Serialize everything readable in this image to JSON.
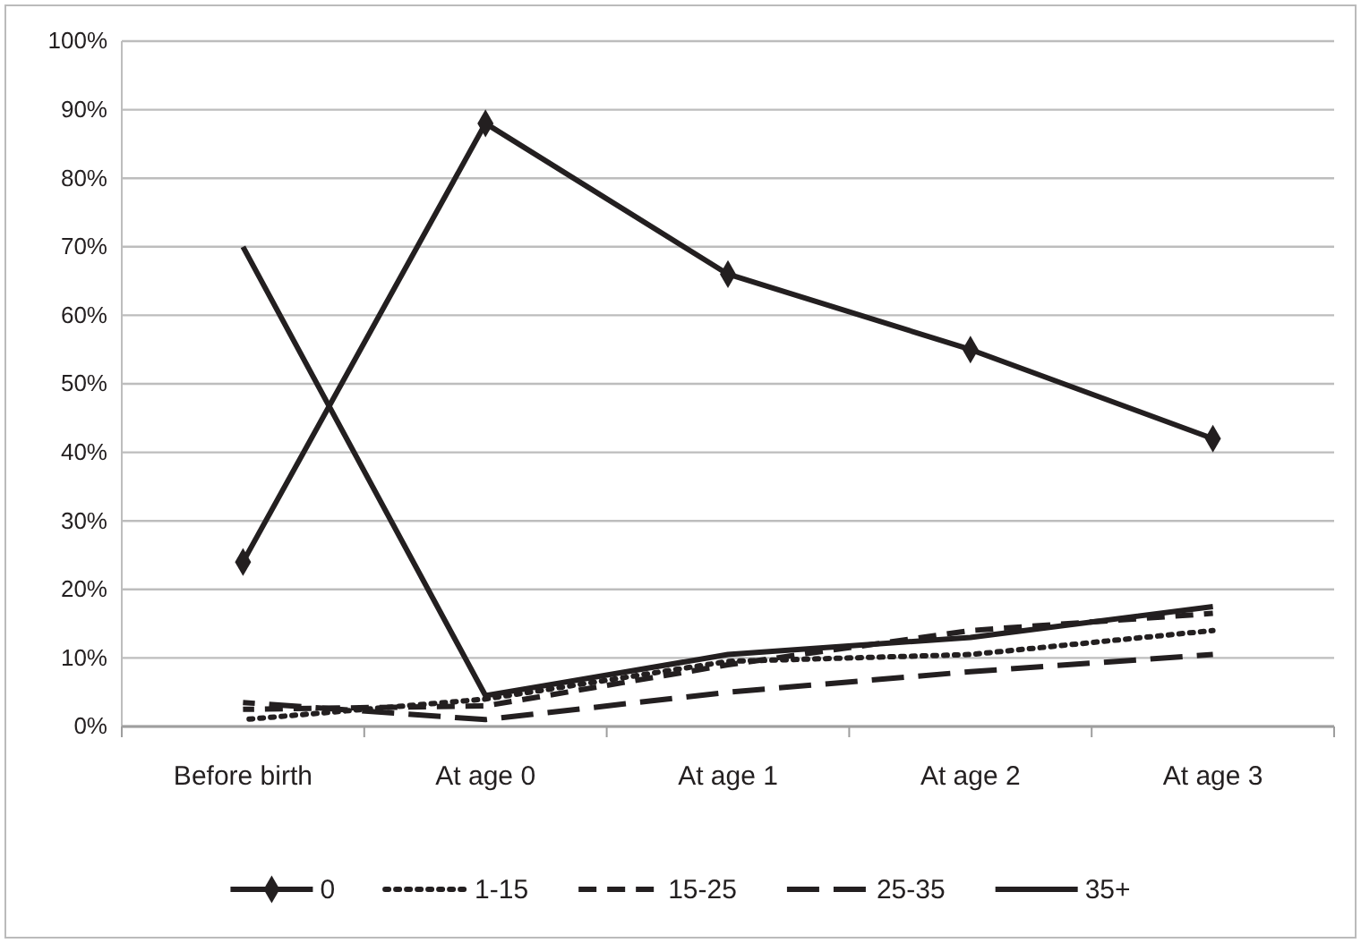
{
  "chart_data": {
    "type": "line",
    "categories": [
      "Before birth",
      "At age 0",
      "At age 1",
      "At age 2",
      "At age 3"
    ],
    "series": [
      {
        "name": "0",
        "color": "#231f20",
        "marker": "diamond",
        "line_style": "solid",
        "values": [
          24,
          88,
          66,
          55,
          42
        ]
      },
      {
        "name": "1-15",
        "color": "#231f20",
        "marker": "none",
        "line_style": "dotted",
        "values": [
          1,
          4,
          9.5,
          10.5,
          14
        ]
      },
      {
        "name": "15-25",
        "color": "#231f20",
        "marker": "none",
        "line_style": "dashed",
        "values": [
          2.5,
          3,
          9,
          14,
          16.5
        ]
      },
      {
        "name": "25-35",
        "color": "#231f20",
        "marker": "none",
        "line_style": "dashed",
        "values": [
          3.5,
          1,
          5,
          8,
          10.5
        ]
      },
      {
        "name": "35+",
        "color": "#231f20",
        "marker": "none",
        "line_style": "solid",
        "values": [
          70,
          4.5,
          10.5,
          13,
          17.5
        ]
      }
    ],
    "ylim": [
      0,
      100
    ],
    "yticks": [
      {
        "value": 0,
        "label": "0%"
      },
      {
        "value": 10,
        "label": "10%"
      },
      {
        "value": 20,
        "label": "20%"
      },
      {
        "value": 30,
        "label": "30%"
      },
      {
        "value": 40,
        "label": "40%"
      },
      {
        "value": 50,
        "label": "50%"
      },
      {
        "value": 60,
        "label": "60%"
      },
      {
        "value": 70,
        "label": "70%"
      },
      {
        "value": 80,
        "label": "80%"
      },
      {
        "value": 90,
        "label": "90%"
      },
      {
        "value": 100,
        "label": "100%"
      }
    ],
    "grid": "y",
    "legend": "bottom"
  }
}
